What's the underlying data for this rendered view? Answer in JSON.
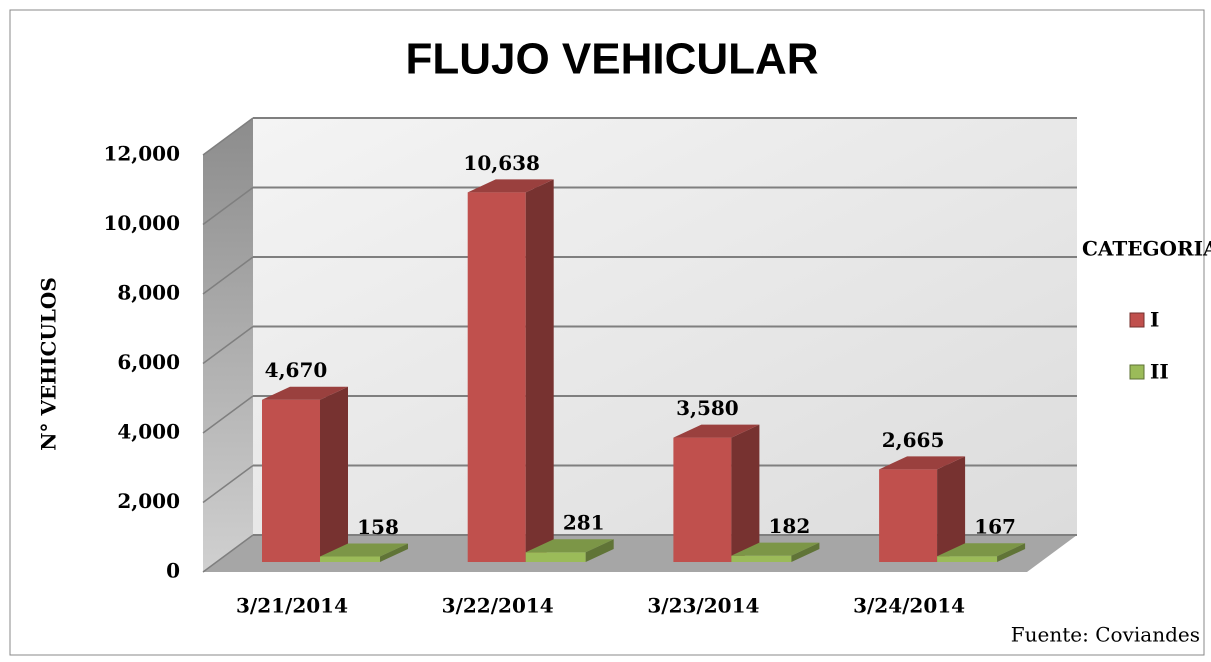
{
  "chart_data": {
    "type": "bar3d",
    "title": "FLUJO VEHICULAR",
    "y_label": "N° VEHICULOS",
    "categories": [
      "3/21/2014",
      "3/22/2014",
      "3/23/2014",
      "3/24/2014"
    ],
    "series": [
      {
        "name": "I",
        "color": "#c0504d",
        "values": [
          4670,
          10638,
          3580,
          2665
        ],
        "value_labels": [
          "4,670",
          "10,638",
          "3,580",
          "2,665"
        ]
      },
      {
        "name": "II",
        "color": "#9bbb59",
        "values": [
          158,
          281,
          182,
          167
        ]
      }
    ],
    "ylim": [
      0,
      12000
    ],
    "yticks": [
      0,
      {
        "value": 2000,
        "label": "2,000"
      },
      {
        "value": 4000,
        "label": "4,000"
      },
      {
        "value": 6000,
        "label": "6,000"
      },
      {
        "value": 8000,
        "label": "8,000"
      },
      {
        "value": 10000,
        "label": "10,000"
      },
      {
        "value": 12000,
        "label": "12,000"
      }
    ],
    "grid": true,
    "legend_title": "CATEGORIA",
    "legend": "right",
    "source": "Fuente: Coviandes"
  }
}
